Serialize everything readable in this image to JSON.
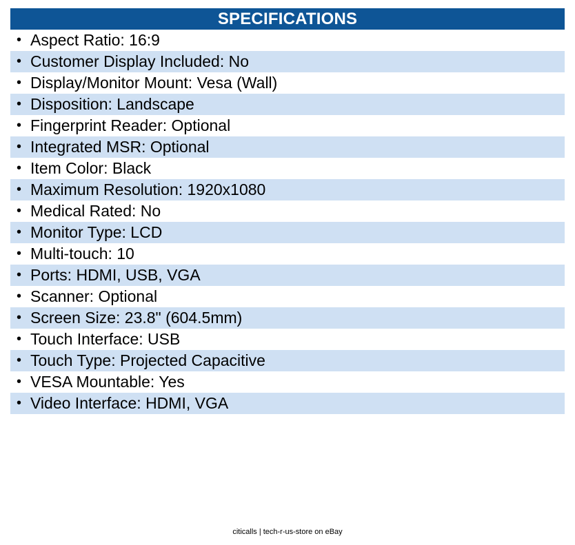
{
  "header": {
    "title": "SPECIFICATIONS"
  },
  "bullet_glyph": "•",
  "colors": {
    "header_bg": "#0e5596",
    "row_shade": "#cfe0f3"
  },
  "specs": [
    "Aspect Ratio: 16:9",
    "Customer Display Included: No",
    "Display/Monitor Mount: Vesa (Wall)",
    "Disposition: Landscape",
    "Fingerprint Reader: Optional",
    "Integrated MSR: Optional",
    "Item Color: Black",
    "Maximum Resolution: 1920x1080",
    "Medical Rated: No",
    "Monitor Type: LCD",
    "Multi-touch: 10",
    "Ports: HDMI, USB, VGA",
    "Scanner: Optional",
    "Screen Size: 23.8\" (604.5mm)",
    "Touch Interface: USB",
    "Touch Type: Projected Capacitive",
    "VESA Mountable: Yes",
    "Video Interface: HDMI, VGA"
  ],
  "footer": {
    "text": "citicalls | tech-r-us-store on eBay"
  }
}
